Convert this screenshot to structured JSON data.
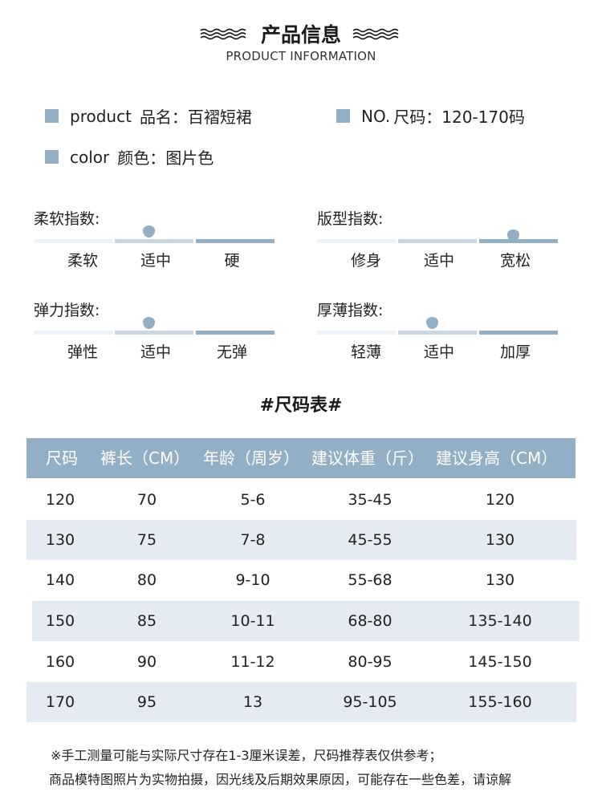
{
  "header": {
    "title": "产品信息",
    "subtitle": "PRODUCT INFORMATION",
    "wave_color": "#1a1a1a"
  },
  "info": {
    "product": {
      "key": "product",
      "value": "品名：百褶短裙"
    },
    "size": {
      "key": "NO.",
      "value": "尺码：120-170码"
    },
    "color": {
      "key": "color",
      "value": "颜色：图片色"
    },
    "accent_color": "#93afc6"
  },
  "indices": [
    {
      "title": "柔软指数:",
      "labels": [
        "柔软",
        "适中",
        "硬"
      ],
      "level": 1
    },
    {
      "title": "版型指数:",
      "labels": [
        "修身",
        "适中",
        "宽松"
      ],
      "level": 2
    },
    {
      "title": "弹力指数:",
      "labels": [
        "弹性",
        "适中",
        "无弹"
      ],
      "level": 1
    },
    {
      "title": "厚薄指数:",
      "labels": [
        "轻薄",
        "适中",
        "加厚"
      ],
      "level": 1
    }
  ],
  "size_table": {
    "title": "#尺码表#",
    "headers": [
      "尺码",
      "裤长（CM）",
      "年龄（周岁）",
      "建议体重（斤）",
      "建议身高（CM）"
    ],
    "rows": [
      [
        "120",
        "70",
        "5-6",
        "35-45",
        "120"
      ],
      [
        "130",
        "75",
        "7-8",
        "45-55",
        "130"
      ],
      [
        "140",
        "80",
        "9-10",
        "55-68",
        "130"
      ],
      [
        "150",
        "85",
        "10-11",
        "68-80",
        "135-140"
      ],
      [
        "160",
        "90",
        "11-12",
        "80-95",
        "145-150"
      ],
      [
        "170",
        "95",
        "13",
        "95-105",
        "155-160"
      ]
    ],
    "header_color": "#93afc6",
    "stripe_color": "#e4ebf2"
  },
  "notes": [
    "※手工测量可能与实际尺寸存在1-3厘米误差，尺码推荐表仅供参考；",
    "商品模特图照片为实物拍摄，因光线及后期效果原因，可能存在一些色差，请谅解"
  ]
}
